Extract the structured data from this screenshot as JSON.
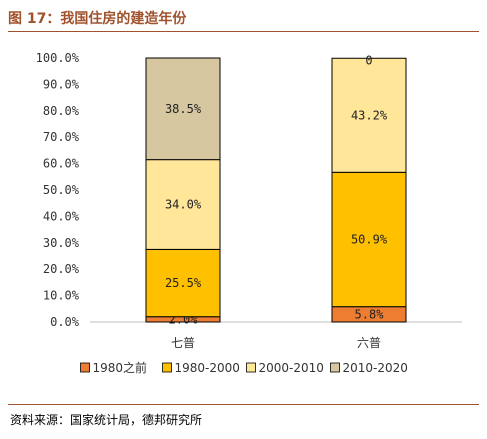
{
  "header": {
    "title": "图 17：我国住房的建造年份"
  },
  "footer": {
    "source": "资料来源：国家统计局，德邦研究所"
  },
  "chart_data": {
    "type": "bar",
    "stacked": true,
    "categories": [
      "七普",
      "六普"
    ],
    "series": [
      {
        "name": "1980之前",
        "color": "#ed7d31",
        "values": [
          2.0,
          5.8
        ],
        "labels": [
          "2.0%",
          "5.8%"
        ]
      },
      {
        "name": "1980-2000",
        "color": "#ffc000",
        "values": [
          25.5,
          50.9
        ],
        "labels": [
          "25.5%",
          "50.9%"
        ]
      },
      {
        "name": "2000-2010",
        "color": "#ffe699",
        "values": [
          34.0,
          43.2
        ],
        "labels": [
          "34.0%",
          "43.2%"
        ]
      },
      {
        "name": "2010-2020",
        "color": "#d6c7a1",
        "values": [
          38.5,
          0
        ],
        "labels": [
          "38.5%",
          "0"
        ]
      }
    ],
    "yticks": [
      "0.0%",
      "10.0%",
      "20.0%",
      "30.0%",
      "40.0%",
      "50.0%",
      "60.0%",
      "70.0%",
      "80.0%",
      "90.0%",
      "100.0%"
    ],
    "ylim": [
      0,
      100
    ],
    "legend_position": "bottom",
    "grid": false
  }
}
